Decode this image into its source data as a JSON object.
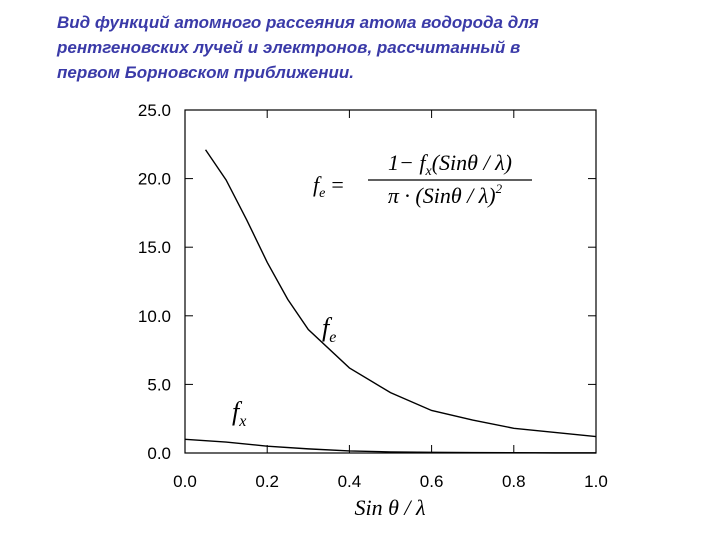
{
  "chart_data": {
    "type": "line",
    "title_lines": [
      "Вид функций атомного рассеяния атома водорода для",
      "рентгеновских лучей и электронов, рассчитанный в",
      "первом Борновском приближении."
    ],
    "xlabel": "Sin θ / λ",
    "xlim": [
      0,
      1
    ],
    "ylim": [
      0,
      25
    ],
    "xticks": [
      {
        "value": 0,
        "label": "0.0"
      },
      {
        "value": 0.2,
        "label": "0.2"
      },
      {
        "value": 0.4,
        "label": "0.4"
      },
      {
        "value": 0.6,
        "label": "0.6"
      },
      {
        "value": 0.8,
        "label": "0.8"
      },
      {
        "value": 1,
        "label": "1.0"
      }
    ],
    "yticks": [
      {
        "value": 0,
        "label": "0.0"
      },
      {
        "value": 5,
        "label": "5.0"
      },
      {
        "value": 10,
        "label": "10.0"
      },
      {
        "value": 15,
        "label": "15.0"
      },
      {
        "value": 20,
        "label": "20.0"
      },
      {
        "value": 25,
        "label": "25.0"
      }
    ],
    "series": [
      {
        "name": "f",
        "name_sub": "e",
        "color": "#000000",
        "x": [
          0.05,
          0.1,
          0.15,
          0.2,
          0.25,
          0.3,
          0.4,
          0.5,
          0.6,
          0.7,
          0.8,
          0.9,
          1.0
        ],
        "values": [
          22.1,
          19.9,
          17.0,
          13.9,
          11.2,
          9.0,
          6.2,
          4.4,
          3.1,
          2.4,
          1.8,
          1.5,
          1.2
        ]
      },
      {
        "name": "f",
        "name_sub": "x",
        "color": "#000000",
        "x": [
          0,
          0.1,
          0.2,
          0.3,
          0.4,
          0.5,
          0.6,
          0.7,
          0.8,
          0.9,
          1.0
        ],
        "values": [
          1.0,
          0.8,
          0.5,
          0.3,
          0.15,
          0.08,
          0.05,
          0.03,
          0.02,
          0.01,
          0.01
        ]
      }
    ],
    "formula": {
      "lhs": "f",
      "lhs_sub": "e",
      "eq": "=",
      "num_pre": "1− f",
      "num_sub": "x",
      "num_post": "(Sinθ / λ)",
      "den": "π · (Sinθ / λ)",
      "den_sup": "2"
    }
  }
}
